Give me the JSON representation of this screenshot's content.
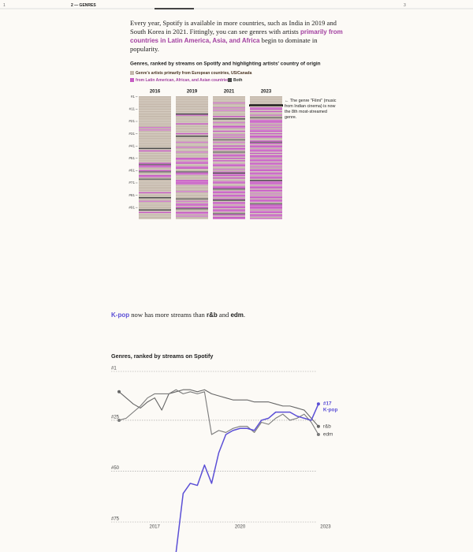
{
  "nav": {
    "items": [
      "1",
      "2 — GENRES",
      "3"
    ],
    "active": 1
  },
  "paragraphs": [
    [
      {
        "text": "Every year, Spotify is available in more countries, such as India in 2019 and South Korea in 2021. Fittingly, you can see genres with artists ",
        "style": "plain"
      },
      {
        "text": "primarily from countries in Latin America, Asia, and Africa",
        "style": "accent"
      },
      {
        "text": " begin to dominate in popularity.",
        "style": "plain"
      }
    ],
    [
      {
        "text": "K-pop",
        "style": "kpop"
      },
      {
        "text": " now has more streams than ",
        "style": "plain"
      },
      {
        "text": "r&b",
        "style": "bold"
      },
      {
        "text": " and ",
        "style": "plain"
      },
      {
        "text": "edm",
        "style": "bold"
      },
      {
        "text": ".",
        "style": "plain"
      }
    ]
  ],
  "chart_data": [
    {
      "type": "stripes",
      "title": "Genres, ranked by streams on Spotify and highlighting artists' country of origin",
      "groups": [
        {
          "name": "Genre's artists primarily from European countries, US/Canada",
          "color": "#c4b8ab",
          "label_color": "#4a3422"
        },
        {
          "name": "from Latin American, African, and Asian countries",
          "color": "#c65cc3",
          "label_color": "#a23fa0"
        },
        {
          "name": "Both",
          "color": "#4d4d4d",
          "label_color": "#333333"
        }
      ],
      "categories": [
        "2016",
        "2019",
        "2021",
        "2023"
      ],
      "origins": [
        [
          0,
          0,
          0,
          0,
          0,
          0,
          0,
          0,
          0,
          0,
          0,
          0,
          0,
          0,
          0,
          0,
          0,
          0,
          0,
          0,
          0,
          0,
          0,
          0,
          0,
          1,
          0,
          1,
          0,
          0,
          0,
          0,
          0,
          0,
          0,
          0,
          0,
          0,
          0,
          0,
          0,
          0,
          2,
          0,
          1,
          0,
          0,
          0,
          0,
          0,
          0,
          0,
          0,
          0,
          1,
          2,
          1,
          1,
          0,
          0,
          1,
          2,
          0,
          0,
          1,
          1,
          0,
          2,
          0,
          0,
          0,
          0,
          0,
          0,
          0,
          0,
          0,
          0,
          1,
          0,
          0,
          0,
          2,
          0,
          0,
          1,
          0,
          0,
          0,
          0,
          0,
          0,
          2,
          0,
          1,
          0,
          0,
          0,
          0,
          0
        ],
        [
          0,
          0,
          0,
          0,
          0,
          0,
          0,
          0,
          0,
          0,
          0,
          0,
          0,
          0,
          2,
          1,
          0,
          0,
          0,
          0,
          0,
          0,
          1,
          0,
          0,
          0,
          0,
          0,
          0,
          0,
          1,
          0,
          2,
          0,
          0,
          0,
          0,
          1,
          0,
          0,
          0,
          1,
          0,
          0,
          0,
          1,
          0,
          0,
          0,
          0,
          1,
          1,
          0,
          1,
          1,
          0,
          0,
          1,
          1,
          0,
          0,
          2,
          1,
          1,
          0,
          0,
          0,
          0,
          1,
          1,
          1,
          1,
          0,
          0,
          0,
          0,
          0,
          1,
          0,
          0,
          0,
          0,
          0,
          2,
          0,
          1,
          0,
          1,
          1,
          0,
          1,
          2,
          0,
          0,
          1,
          1,
          0,
          1,
          0,
          0
        ],
        [
          0,
          0,
          0,
          0,
          0,
          1,
          0,
          0,
          0,
          1,
          0,
          1,
          0,
          0,
          0,
          0,
          1,
          0,
          2,
          0,
          0,
          1,
          0,
          0,
          1,
          1,
          0,
          0,
          1,
          0,
          0,
          1,
          0,
          1,
          0,
          2,
          0,
          1,
          0,
          0,
          1,
          0,
          1,
          1,
          0,
          2,
          0,
          1,
          1,
          0,
          1,
          0,
          1,
          0,
          0,
          1,
          1,
          0,
          0,
          1,
          0,
          1,
          2,
          1,
          1,
          0,
          1,
          0,
          0,
          1,
          1,
          0,
          0,
          1,
          1,
          2,
          0,
          1,
          1,
          0,
          1,
          1,
          0,
          1,
          2,
          0,
          1,
          1,
          0,
          1,
          1,
          0,
          1,
          1,
          0,
          2,
          1,
          0,
          1,
          1
        ],
        [
          0,
          0,
          0,
          0,
          0,
          0,
          0,
          1,
          0,
          1,
          1,
          0,
          1,
          0,
          0,
          1,
          0,
          2,
          0,
          1,
          1,
          1,
          0,
          1,
          0,
          1,
          0,
          1,
          1,
          0,
          1,
          0,
          1,
          1,
          0,
          0,
          1,
          2,
          1,
          0,
          1,
          1,
          0,
          1,
          1,
          0,
          1,
          0,
          1,
          1,
          0,
          1,
          1,
          0,
          1,
          1,
          0,
          1,
          0,
          1,
          1,
          0,
          1,
          1,
          0,
          1,
          1,
          0,
          2,
          1,
          1,
          1,
          0,
          1,
          1,
          0,
          1,
          1,
          0,
          1,
          0,
          1,
          1,
          0,
          1,
          1,
          0,
          2,
          1,
          1,
          1,
          1,
          0,
          1,
          1,
          0,
          1,
          1,
          0,
          1
        ]
      ],
      "highlight": {
        "column": 3,
        "rank": 8,
        "color": "#111111"
      },
      "ylim": [
        1,
        101
      ],
      "yticks": [
        {
          "value": 1,
          "label": "#1"
        },
        {
          "value": 11,
          "label": "#11"
        },
        {
          "value": 21,
          "label": "#21"
        },
        {
          "value": 31,
          "label": "#31"
        },
        {
          "value": 41,
          "label": "#41"
        },
        {
          "value": 51,
          "label": "#51"
        },
        {
          "value": 61,
          "label": "#61"
        },
        {
          "value": 71,
          "label": "#71"
        },
        {
          "value": 81,
          "label": "#81"
        },
        {
          "value": 91,
          "label": "#91"
        }
      ],
      "annotation": "← The genre \"Filmi\" (music from Indian cinema) is now the 8th most-streamed genre."
    },
    {
      "type": "line",
      "title": "Genres, ranked by streams on Spotify",
      "x": [
        2015.75,
        2016,
        2016.25,
        2016.5,
        2016.75,
        2017,
        2017.25,
        2017.5,
        2017.75,
        2018,
        2018.25,
        2018.5,
        2018.75,
        2019,
        2019.25,
        2019.5,
        2019.75,
        2020,
        2020.25,
        2020.5,
        2020.75,
        2021,
        2021.25,
        2021.5,
        2021.75,
        2022,
        2022.25,
        2022.5,
        2022.75
      ],
      "series": [
        {
          "name": "r&b",
          "color": "#666666",
          "values": [
            11,
            14,
            17,
            19,
            16,
            14,
            20,
            12,
            11,
            10,
            10,
            11,
            10,
            12,
            13,
            14,
            15,
            15,
            15,
            16,
            16,
            16,
            17,
            18,
            18,
            19,
            20,
            24,
            28
          ]
        },
        {
          "name": "edm",
          "color": "#7a7a7a",
          "values": [
            25,
            24,
            21,
            18,
            14,
            12,
            12,
            12,
            10,
            12,
            11,
            12,
            11,
            32,
            30,
            31,
            29,
            28,
            28,
            31,
            26,
            27,
            24,
            22,
            25,
            24,
            22,
            26,
            32
          ]
        },
        {
          "name": "K-pop",
          "color": "#5b4fd6",
          "end_label": "#17",
          "values": [
            null,
            null,
            null,
            null,
            null,
            null,
            null,
            null,
            90,
            61,
            56,
            57,
            47,
            56,
            41,
            32,
            30,
            29,
            29,
            30,
            25,
            24,
            21,
            21,
            21,
            23,
            24,
            25,
            17
          ]
        }
      ],
      "xlim": [
        2015.5,
        2023.5
      ],
      "xticks": [
        2017,
        2020,
        2023
      ],
      "ylim": [
        1,
        75
      ],
      "y_reversed": true,
      "yticks": [
        {
          "value": 1,
          "label": "#1"
        },
        {
          "value": 25,
          "label": "#25"
        },
        {
          "value": 50,
          "label": "#50"
        },
        {
          "value": 75,
          "label": "#75"
        }
      ],
      "grid": true
    }
  ]
}
